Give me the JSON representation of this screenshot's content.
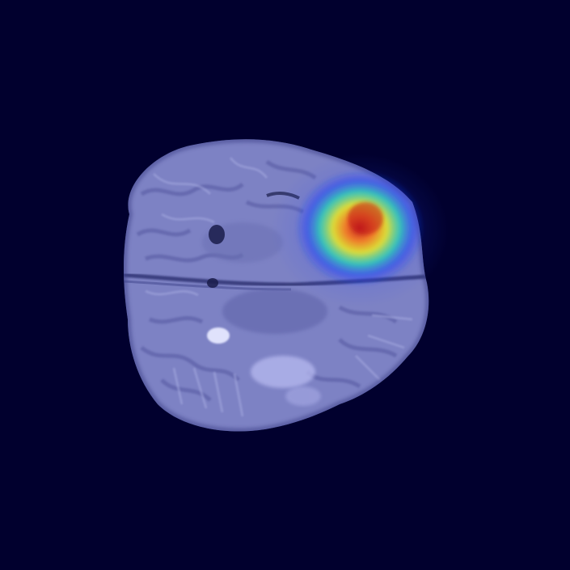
{
  "image": {
    "description_type": "axial-brain-mri-with-attention-heatmap",
    "colors": {
      "background": "#01002e",
      "tissue": "#7d82c4",
      "tissue_dark": "#5a5fa3",
      "tissue_light": "#a7abe0",
      "heatmap_low": "#1a3cff",
      "heatmap_mid": "#1fe6b0",
      "heatmap_high_1": "#f2f21a",
      "heatmap_high_2": "#ff8a1a",
      "heatmap_peak": "#d91a1a"
    }
  }
}
